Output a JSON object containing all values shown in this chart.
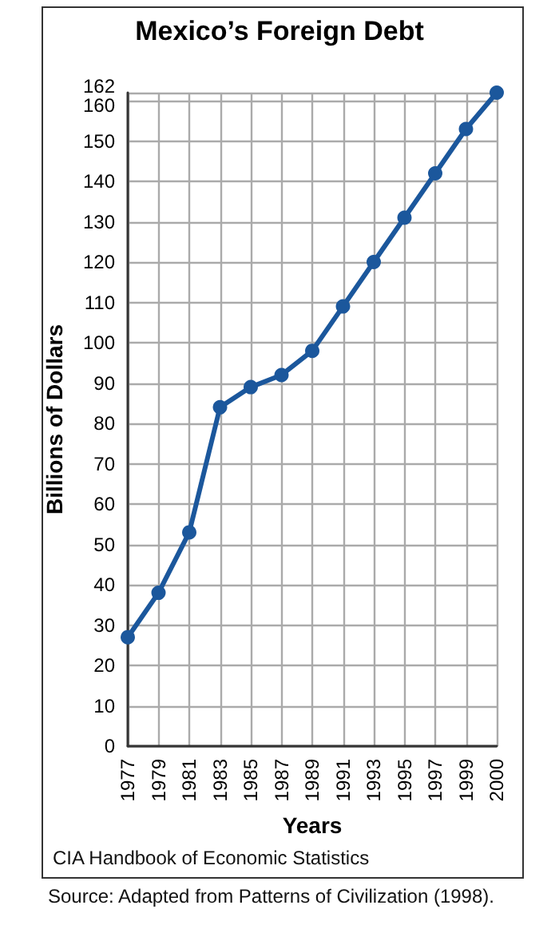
{
  "chart_data": {
    "type": "line",
    "title": "Mexico’s Foreign Debt",
    "xlabel": "Years",
    "ylabel": "Billions of Dollars",
    "categories": [
      "1977",
      "1979",
      "1981",
      "1983",
      "1985",
      "1987",
      "1989",
      "1991",
      "1993",
      "1995",
      "1997",
      "1999",
      "2000"
    ],
    "series": [
      {
        "color": "#1b579c",
        "values": [
          27,
          38,
          53,
          84,
          89,
          92,
          98,
          109,
          120,
          131,
          142,
          153,
          162
        ]
      }
    ],
    "ylim": [
      0,
      162
    ],
    "yticks": [
      0,
      10,
      20,
      30,
      40,
      50,
      60,
      70,
      80,
      90,
      100,
      110,
      120,
      130,
      140,
      150,
      160,
      162
    ],
    "grid": true,
    "marker": "circle",
    "line_style": "solid",
    "annotations": [
      "CIA Handbook of Economic Statistics",
      "Source: Adapted from Patterns of Civilization (1998)."
    ]
  }
}
